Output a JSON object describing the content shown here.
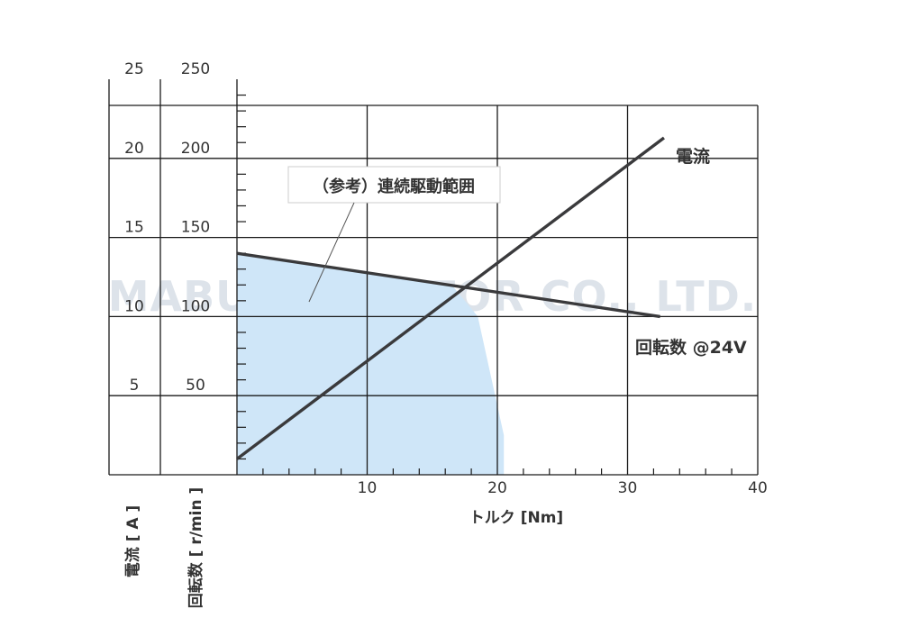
{
  "chart_data": {
    "type": "line",
    "xlabel": "トルク [Nm]",
    "xlim": [
      0,
      40
    ],
    "x_ticks": [
      10,
      20,
      30,
      40
    ],
    "axes": {
      "current": {
        "label": "電流 [ A ]",
        "ticks": [
          "5",
          "10",
          "15",
          "20",
          "25"
        ],
        "ylim": [
          0,
          25
        ]
      },
      "speed": {
        "label": "回転数 [ r/min ]",
        "ticks": [
          "50",
          "100",
          "150",
          "200",
          "250"
        ],
        "ylim": [
          0,
          250
        ]
      }
    },
    "series": [
      {
        "name": "電流",
        "axis": "current",
        "x": [
          0,
          32.8
        ],
        "y": [
          1,
          21.3
        ]
      },
      {
        "name": "回転数 @24V",
        "axis": "speed",
        "x": [
          0,
          32.5
        ],
        "y": [
          140,
          100
        ]
      }
    ],
    "region": {
      "label": "（参考）連続駆動範囲",
      "x": [
        0,
        16.5,
        18.5,
        20.5,
        20.5,
        0
      ],
      "y_speed": [
        140,
        120,
        100,
        25,
        0,
        0
      ]
    },
    "watermark": "MABUCHI MOTOR CO., LTD.",
    "grid": true,
    "colors": {
      "line": "#3a3a3c",
      "region": "#cfe6f8",
      "grid": "#1a1a1a",
      "text": "#333333",
      "watermark": "#dde3ea"
    }
  }
}
